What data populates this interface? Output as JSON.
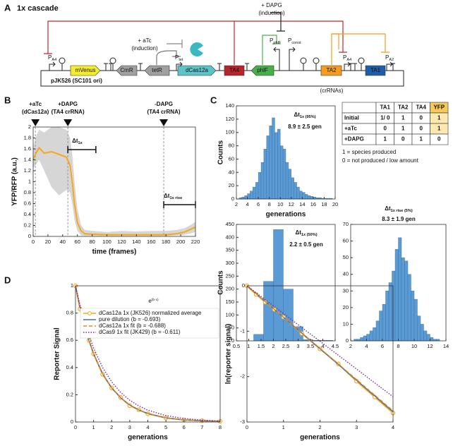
{
  "panel_labels": [
    "A",
    "B",
    "C",
    "D"
  ],
  "diagram": {
    "title": "1x cascade",
    "plasmid": "pJK526 (SC101 ori)",
    "crRNA_note": "(crRNAs)",
    "genes": [
      "mVenus",
      "CmR",
      "tetR",
      "dCas12a",
      "TA4",
      "phlF",
      "TA2",
      "TA1"
    ],
    "promoters": [
      {
        "main": "P",
        "sub": "A4"
      },
      {
        "main": "P",
        "sub": "tet"
      },
      {
        "main": "P",
        "sub": "phlF"
      },
      {
        "main": "P",
        "sub": "const"
      },
      {
        "main": "P",
        "sub": "A4"
      },
      {
        "main": "P",
        "sub": "A2"
      }
    ],
    "inducers": [
      {
        "name": "+ aTc",
        "note": "(induction)"
      },
      {
        "name": "+ DAPG",
        "note": "(induction)"
      }
    ]
  },
  "table": {
    "header": [
      "TA1",
      "TA2",
      "TA4",
      "YFP"
    ],
    "rows": [
      [
        "Initial",
        "1/ 0",
        "1",
        "0",
        "1"
      ],
      [
        "+aTc",
        "0",
        "1",
        "0",
        "1"
      ],
      [
        "+DAPG",
        "1",
        "0",
        "1",
        "0"
      ]
    ],
    "notes": [
      "1 = species produced",
      "0 = not produced / low amount"
    ]
  },
  "chart_data": [
    {
      "type": "line",
      "xlabel": "time (frames)",
      "ylabel": "YFP/RFP (a.u.)",
      "x": [
        0,
        3,
        8,
        15,
        25,
        35,
        45,
        50,
        53,
        56,
        60,
        65,
        70,
        80,
        100,
        120,
        140,
        160,
        180,
        195,
        205,
        215,
        220
      ],
      "series": [
        {
          "color": "#f5a81c",
          "dash": "solid",
          "values": [
            1.4,
            1.5,
            1.62,
            1.52,
            1.55,
            1.5,
            1.45,
            1.3,
            1.0,
            0.6,
            0.25,
            0.1,
            0.05,
            0.04,
            0.03,
            0.03,
            0.03,
            0.03,
            0.03,
            0.05,
            0.08,
            0.14,
            0.17
          ]
        }
      ],
      "band": {
        "color": "#d6d6d6",
        "lower": [
          1.25,
          1.3,
          1.4,
          1.2,
          0.9,
          0.75,
          0.85,
          0.8,
          0.6,
          0.3,
          0.1,
          0.02,
          0.01,
          0.01,
          0.01,
          0.01,
          0.01,
          0.01,
          0.01,
          0.02,
          0.03,
          0.06,
          0.08
        ],
        "upper": [
          1.6,
          1.8,
          1.95,
          1.9,
          2.0,
          2.0,
          1.95,
          1.8,
          1.5,
          1.0,
          0.5,
          0.2,
          0.12,
          0.1,
          0.08,
          0.1,
          0.09,
          0.1,
          0.1,
          0.12,
          0.15,
          0.22,
          0.27
        ]
      },
      "xlim": [
        0,
        220
      ],
      "xticks": [
        0,
        20,
        40,
        60,
        80,
        100,
        120,
        140,
        160,
        180,
        200,
        220
      ],
      "ylim": [
        0,
        2
      ],
      "yticks": [
        0,
        0.2,
        0.4,
        0.6,
        0.8,
        1,
        1.2,
        1.4,
        1.6,
        1.8,
        2
      ],
      "events": [
        {
          "x": 3,
          "label": "+aTc",
          "note": "(dCas12a)"
        },
        {
          "x": 47,
          "label": "+DAPG",
          "note": "(TA4 crRNA)"
        },
        {
          "x": 177,
          "label": "-DAPG",
          "note": "(TA4 crRNA)"
        }
      ],
      "intervals": [
        {
          "main": "Δt",
          "sub": "1x",
          "x": [
            47,
            85
          ]
        },
        {
          "main": "Δt",
          "sub": "1x rise",
          "x": [
            177,
            220
          ]
        }
      ]
    },
    {
      "type": "histogram",
      "title": {
        "main": "Δt",
        "sub": "1x (95%)"
      },
      "subtitle": "8.9 ± 2.5 gen",
      "xlabel": "generations",
      "ylabel": "Counts",
      "color": "#5b9bd5",
      "bins": [
        2,
        2.5,
        3,
        3.5,
        4,
        4.5,
        5,
        5.5,
        6,
        6.5,
        7,
        7.5,
        8,
        8.5,
        9,
        9.5,
        10,
        10.5,
        11,
        11.5,
        12,
        12.5,
        13,
        13.5,
        14,
        14.5,
        15,
        15.5,
        16,
        16.5,
        17,
        17.5,
        18,
        18.5,
        19,
        19.5,
        20
      ],
      "values": [
        0,
        2,
        3,
        5,
        8,
        12,
        18,
        25,
        40,
        55,
        75,
        95,
        110,
        122,
        100,
        105,
        80,
        75,
        55,
        45,
        32,
        25,
        18,
        12,
        10,
        7,
        5,
        4,
        3,
        2,
        2,
        1,
        1,
        1,
        1,
        0
      ],
      "xlim": [
        2,
        20
      ],
      "xticks": [
        2,
        4,
        6,
        8,
        10,
        12,
        14,
        16,
        18,
        20
      ],
      "ylim": [
        0,
        140
      ],
      "yticks": [
        0,
        20,
        40,
        60,
        80,
        100,
        120,
        140
      ]
    },
    {
      "type": "histogram",
      "title": {
        "main": "Δt",
        "sub": "1x (50%)"
      },
      "subtitle": "2.2 ± 0.5 gen",
      "ylabel": "Counts",
      "color": "#5b9bd5",
      "bins": [
        1.2,
        1.6,
        2.0,
        2.4,
        2.8,
        3.2,
        3.6,
        4.0,
        4.4
      ],
      "values": [
        25,
        230,
        430,
        200,
        55,
        5,
        2,
        2
      ],
      "xlim": [
        0.5,
        4.5
      ],
      "xticks": [
        0.5,
        1,
        1.5,
        2,
        2.5,
        3,
        3.5,
        4,
        4.5
      ],
      "ylim": [
        0,
        450
      ],
      "yticks": [
        0,
        50,
        100,
        150,
        200,
        250,
        300,
        350,
        400,
        450
      ]
    },
    {
      "type": "histogram",
      "title": {
        "main": "Δt",
        "sub": "1x rise (5%)"
      },
      "subtitle": "8.3 ± 1.9 gen",
      "color": "#5b9bd5",
      "bins": [
        2.4,
        2.8,
        3.2,
        3.6,
        4,
        4.4,
        4.8,
        5.2,
        5.6,
        6,
        6.4,
        6.8,
        7.2,
        7.6,
        8,
        8.4,
        8.8,
        9.2,
        9.6,
        10,
        10.4,
        10.8,
        11.2,
        11.6,
        12,
        12.4,
        12.8,
        13.2
      ],
      "values": [
        1,
        1,
        2,
        3,
        4,
        6,
        8,
        12,
        18,
        22,
        30,
        35,
        42,
        55,
        62,
        50,
        48,
        40,
        30,
        25,
        15,
        10,
        6,
        4,
        2,
        1,
        1
      ],
      "xlim": [
        2,
        14
      ],
      "xticks": [
        2,
        4,
        6,
        8,
        10,
        12,
        14
      ],
      "ylim": [
        0,
        70
      ],
      "yticks": [
        0,
        10,
        20,
        30,
        40,
        50,
        60,
        70
      ]
    },
    {
      "type": "line",
      "xlabel": "generations",
      "ylabel": "Reporter Signal",
      "annotation": {
        "main": "e",
        "sup": "(b·x)"
      },
      "legend": "upper right",
      "x": [
        0,
        0.25,
        0.5,
        0.75,
        1,
        1.5,
        2,
        2.5,
        3,
        3.5,
        4,
        5,
        6,
        7,
        8
      ],
      "series": [
        {
          "name": "dCas12a 1x (JK526) normalized average",
          "color": "#f5a81c",
          "dash": "solid",
          "marker": "circle",
          "values": [
            1,
            0.83,
            0.7,
            0.6,
            0.5,
            0.35,
            0.25,
            0.18,
            0.12,
            0.09,
            0.06,
            0.03,
            0.015,
            0.01,
            0.005
          ]
        },
        {
          "name": "pure dilution (b = -0.693)",
          "color": "#3b6fb6",
          "dash": "solid",
          "values": [
            1,
            0.841,
            0.707,
            0.595,
            0.5,
            0.354,
            0.25,
            0.177,
            0.125,
            0.088,
            0.0625,
            0.031,
            0.016,
            0.008,
            0.004
          ]
        },
        {
          "name": "dCas12a 1x fit (b = -0.688)",
          "color": "#e8871e",
          "dash": "dashed",
          "values": [
            1,
            0.842,
            0.709,
            0.597,
            0.503,
            0.356,
            0.253,
            0.179,
            0.127,
            0.09,
            0.064,
            0.032,
            0.016,
            0.008,
            0.004
          ]
        },
        {
          "name": "dCas9 1x fit (JK429) (b = -0.611)",
          "color": "#7a2a9a",
          "dash": "dotted",
          "values": [
            1,
            0.858,
            0.737,
            0.632,
            0.543,
            0.4,
            0.295,
            0.217,
            0.16,
            0.118,
            0.087,
            0.047,
            0.026,
            0.014,
            0.0075
          ]
        }
      ],
      "xlim": [
        0,
        8
      ],
      "xticks": [
        0,
        1,
        2,
        3,
        4,
        5,
        6,
        7,
        8
      ],
      "ylim": [
        0,
        1
      ],
      "yticks": [
        0,
        0.2,
        0.4,
        0.6,
        0.8,
        1
      ]
    },
    {
      "type": "line",
      "xlabel": "generations",
      "ylabel": "ln(reporter signal)",
      "x": [
        0,
        0.25,
        0.5,
        0.75,
        1,
        1.5,
        2,
        2.5,
        3,
        3.5,
        4
      ],
      "series": [
        {
          "color": "#f5a81c",
          "dash": "solid",
          "marker": "circle",
          "values": [
            0,
            -0.19,
            -0.36,
            -0.52,
            -0.69,
            -1.05,
            -1.39,
            -1.72,
            -2.1,
            -2.45,
            -2.8
          ]
        },
        {
          "color": "#3b6fb6",
          "dash": "solid",
          "values": [
            0,
            -0.173,
            -0.347,
            -0.52,
            -0.693,
            -1.04,
            -1.386,
            -1.733,
            -2.079,
            -2.426,
            -2.772
          ]
        },
        {
          "color": "#e8871e",
          "dash": "dashed",
          "values": [
            0,
            -0.172,
            -0.344,
            -0.516,
            -0.688,
            -1.032,
            -1.376,
            -1.72,
            -2.064,
            -2.408,
            -2.752
          ]
        },
        {
          "color": "#7a2a9a",
          "dash": "dotted",
          "values": [
            0,
            -0.153,
            -0.306,
            -0.458,
            -0.611,
            -0.917,
            -1.222,
            -1.528,
            -1.833,
            -2.139,
            -2.444
          ]
        }
      ],
      "xlim": [
        0,
        4
      ],
      "xticks": [
        0,
        1,
        2,
        3,
        4
      ],
      "ylim": [
        -3,
        0
      ],
      "yticks": [
        -3,
        -2,
        -1,
        0
      ]
    }
  ]
}
